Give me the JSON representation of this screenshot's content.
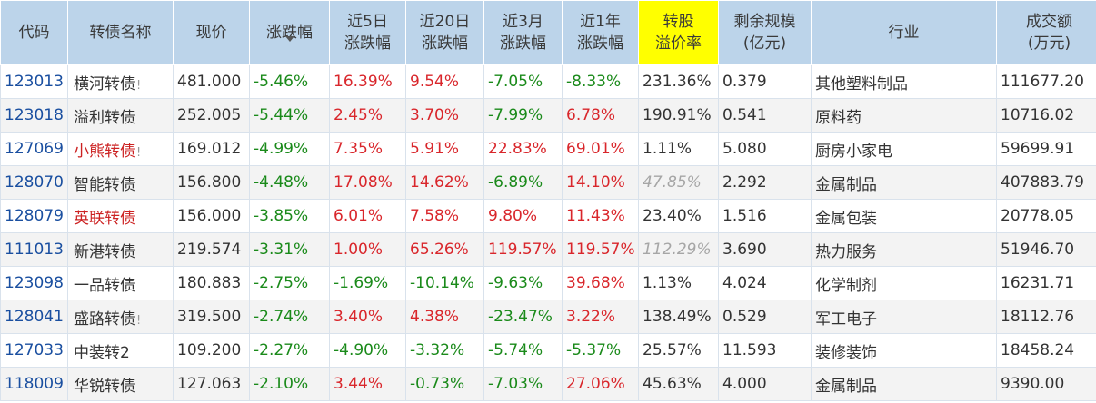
{
  "headers": [
    "代码",
    "转债名称",
    "现价",
    "涨跌幅",
    "近5日\n涨跌幅",
    "近20日\n涨跌幅",
    "近3月\n涨跌幅",
    "近1年\n涨跌幅",
    "转股\n溢价率",
    "剩余规模\n(亿元)",
    "行业",
    "成交额\n(万元)"
  ],
  "rows": [
    {
      "code": "123013",
      "name": "横河转债",
      "bang": "!",
      "name_red": false,
      "price": "481.000",
      "chg": "-5.46%",
      "d5": "16.39%",
      "d20": "9.54%",
      "m3": "-7.05%",
      "y1": "-8.33%",
      "premium": "231.36%",
      "premium_italic": false,
      "scale": "0.379",
      "industry": "其他塑料制品",
      "turnover": "111677.20"
    },
    {
      "code": "123018",
      "name": "溢利转债",
      "bang": "",
      "name_red": false,
      "price": "252.005",
      "chg": "-5.44%",
      "d5": "2.45%",
      "d20": "3.70%",
      "m3": "-7.99%",
      "y1": "6.78%",
      "premium": "190.91%",
      "premium_italic": false,
      "scale": "0.541",
      "industry": "原料药",
      "turnover": "10716.02"
    },
    {
      "code": "127069",
      "name": "小熊转债",
      "bang": "!",
      "name_red": true,
      "price": "169.012",
      "chg": "-4.99%",
      "d5": "7.35%",
      "d20": "5.91%",
      "m3": "22.83%",
      "y1": "69.01%",
      "premium": "1.11%",
      "premium_italic": false,
      "scale": "5.080",
      "industry": "厨房小家电",
      "turnover": "59699.91"
    },
    {
      "code": "128070",
      "name": "智能转债",
      "bang": "",
      "name_red": false,
      "price": "156.800",
      "chg": "-4.48%",
      "d5": "17.08%",
      "d20": "14.62%",
      "m3": "-6.89%",
      "y1": "14.10%",
      "premium": "47.85%",
      "premium_italic": true,
      "scale": "2.292",
      "industry": "金属制品",
      "turnover": "407883.79"
    },
    {
      "code": "128079",
      "name": "英联转债",
      "bang": "",
      "name_red": true,
      "price": "156.000",
      "chg": "-3.85%",
      "d5": "6.01%",
      "d20": "7.58%",
      "m3": "9.80%",
      "y1": "11.43%",
      "premium": "23.40%",
      "premium_italic": false,
      "scale": "1.516",
      "industry": "金属包装",
      "turnover": "20778.05"
    },
    {
      "code": "111013",
      "name": "新港转债",
      "bang": "",
      "name_red": false,
      "price": "219.574",
      "chg": "-3.31%",
      "d5": "1.00%",
      "d20": "65.26%",
      "m3": "119.57%",
      "y1": "119.57%",
      "premium": "112.29%",
      "premium_italic": true,
      "scale": "3.690",
      "industry": "热力服务",
      "turnover": "51946.70"
    },
    {
      "code": "123098",
      "name": "一品转债",
      "bang": "",
      "name_red": false,
      "price": "180.883",
      "chg": "-2.75%",
      "d5": "-1.69%",
      "d20": "-10.14%",
      "m3": "-9.63%",
      "y1": "39.68%",
      "premium": "1.13%",
      "premium_italic": false,
      "scale": "4.024",
      "industry": "化学制剂",
      "turnover": "16231.71"
    },
    {
      "code": "128041",
      "name": "盛路转债",
      "bang": "!",
      "name_red": false,
      "price": "319.500",
      "chg": "-2.74%",
      "d5": "3.40%",
      "d20": "4.38%",
      "m3": "-23.47%",
      "y1": "3.22%",
      "premium": "138.49%",
      "premium_italic": false,
      "scale": "0.529",
      "industry": "军工电子",
      "turnover": "18112.76"
    },
    {
      "code": "127033",
      "name": "中装转2",
      "bang": "",
      "name_red": false,
      "price": "109.200",
      "chg": "-2.27%",
      "d5": "-4.90%",
      "d20": "-3.32%",
      "m3": "-5.74%",
      "y1": "-5.37%",
      "premium": "25.57%",
      "premium_italic": false,
      "scale": "11.593",
      "industry": "装修装饰",
      "turnover": "18458.24"
    },
    {
      "code": "118009",
      "name": "华锐转债",
      "bang": "",
      "name_red": false,
      "price": "127.063",
      "chg": "-2.10%",
      "d5": "3.44%",
      "d20": "-0.73%",
      "m3": "-7.03%",
      "y1": "27.06%",
      "premium": "45.63%",
      "premium_italic": false,
      "scale": "4.000",
      "industry": "金属制品",
      "turnover": "9390.00"
    }
  ]
}
